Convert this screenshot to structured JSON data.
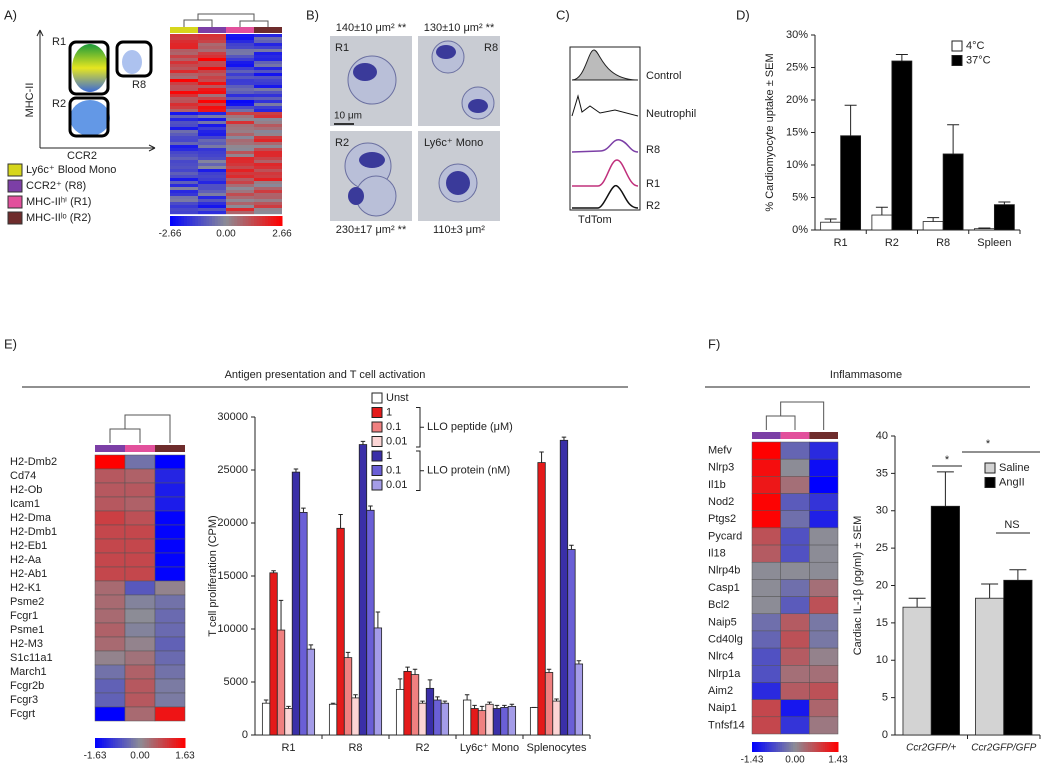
{
  "panels": {
    "A": {
      "label": "A)",
      "y_axis_label": "MHC-II",
      "x_axis_label": "CCR2",
      "gates": [
        "R1",
        "R2",
        "R8"
      ],
      "legend": [
        {
          "name": "Ly6c⁺ Blood Mono",
          "color": "#d6d61c"
        },
        {
          "name": "CCR2⁺ (R8)",
          "color": "#7c3fa6"
        },
        {
          "name": "MHC-IIʰⁱ (R1)",
          "color": "#e2509c"
        },
        {
          "name": "MHC-IIˡᵒ (R2)",
          "color": "#6e2c2c"
        }
      ],
      "zlim": [
        -2.66,
        2.66
      ],
      "colorbar_ticks": [
        -2.66,
        {
          "value": 0,
          "label": "0.00"
        },
        2.66
      ]
    },
    "B": {
      "label": "B)",
      "images": [
        {
          "name": "R1",
          "area": "140±10 μm² **"
        },
        {
          "name": "R8",
          "area": "130±10 μm² **"
        },
        {
          "name": "R2",
          "area": "230±17 μm² **"
        },
        {
          "name": "Ly6c⁺ Mono",
          "area": "110±3 μm²"
        }
      ],
      "scale_bar": "10 μm"
    },
    "C": {
      "label": "C)",
      "traces": [
        "Control",
        "Neutrophil",
        "R8",
        "R1",
        "R2"
      ],
      "x_axis_label": "TdTom"
    },
    "D": {
      "label": "D)"
    },
    "E": {
      "label": "E)",
      "title": "Antigen presentation and T cell activation"
    },
    "F": {
      "label": "F)",
      "title": "Inflammasome"
    }
  },
  "chart_data": [
    {
      "type": "bar",
      "y_label": "% Cardiomyocyte uptake ± SEM",
      "categories": [
        "R1",
        "R2",
        "R8",
        "Spleen"
      ],
      "series": [
        {
          "name": "4°C",
          "color": "#ffffff",
          "values": [
            1.2,
            2.3,
            1.3,
            0.2
          ],
          "errors": [
            0.5,
            1.2,
            0.6,
            0.1
          ]
        },
        {
          "name": "37°C",
          "color": "#000000",
          "values": [
            14.5,
            26,
            11.7,
            3.9
          ],
          "errors": [
            4.7,
            1,
            4.5,
            0.4
          ]
        }
      ],
      "ylim": [
        0,
        30
      ],
      "yticks": [
        {
          "value": 0,
          "label": "0%"
        },
        {
          "value": 5,
          "label": "5%"
        },
        {
          "value": 10,
          "label": "10%"
        },
        {
          "value": 15,
          "label": "15%"
        },
        {
          "value": 20,
          "label": "20%"
        },
        {
          "value": 25,
          "label": "25%"
        },
        {
          "value": 30,
          "label": "30%"
        }
      ],
      "legend": "top-right"
    },
    {
      "type": "heatmap",
      "column_colors": [
        "#7c3fa6",
        "#e2509c",
        "#6e2c2c"
      ],
      "rows": [
        "H2-Dmb2",
        "Cd74",
        "H2-Ob",
        "Icam1",
        "H2-Dma",
        "H2-Dmb1",
        "H2-Eb1",
        "H2-Aa",
        "H2-Ab1",
        "H2-K1",
        "Psme2",
        "Fcgr1",
        "Psme1",
        "H2-M3",
        "S1c11a1",
        "March1",
        "Fcgr2b",
        "Fcgr3",
        "Fcgrt"
      ],
      "values": [
        [
          1.63,
          -0.3,
          -1.63
        ],
        [
          0.6,
          0.5,
          -1.2
        ],
        [
          0.6,
          0.6,
          -1.3
        ],
        [
          0.6,
          0.5,
          -1.3
        ],
        [
          0.9,
          0.7,
          -1.6
        ],
        [
          0.8,
          0.8,
          -1.6
        ],
        [
          0.8,
          0.8,
          -1.6
        ],
        [
          0.8,
          0.8,
          -1.6
        ],
        [
          0.8,
          0.8,
          -1.6
        ],
        [
          0.4,
          -0.6,
          0.1
        ],
        [
          0.4,
          -0.1,
          -0.3
        ],
        [
          0.4,
          0,
          -0.4
        ],
        [
          0.5,
          -0.1,
          -0.4
        ],
        [
          0.4,
          0.1,
          -0.5
        ],
        [
          0.1,
          0.3,
          -0.4
        ],
        [
          -0.3,
          0.5,
          -0.3
        ],
        [
          -0.5,
          0.6,
          -0.2
        ],
        [
          -0.5,
          0.6,
          -0.2
        ],
        [
          -1.63,
          0.4,
          1.4
        ]
      ],
      "zlim": [
        -1.63,
        1.63
      ],
      "colorbar_ticks": [
        -1.63,
        {
          "value": 0,
          "label": "0.00"
        },
        1.63
      ]
    },
    {
      "type": "bar",
      "y_label": "T cell proliferation (CPM)",
      "categories": [
        "R1",
        "R8",
        "R2",
        "Ly6c⁺ Mono",
        "Splenocytes"
      ],
      "series": [
        {
          "name": "Unst",
          "color": "#ffffff",
          "values": [
            3000,
            2900,
            4300,
            3300,
            2600
          ],
          "errors": [
            300,
            100,
            1000,
            500,
            0
          ]
        },
        {
          "name": "1",
          "color": "#e41a1a",
          "values": [
            15300,
            19500,
            6000,
            2500,
            25700
          ],
          "errors": [
            200,
            1300,
            400,
            300,
            1000
          ]
        },
        {
          "name": "0.1",
          "color": "#f08080",
          "values": [
            9900,
            7300,
            5700,
            2300,
            5900
          ],
          "errors": [
            2800,
            500,
            500,
            400,
            300
          ]
        },
        {
          "name": "0.01",
          "color": "#fcd5d5",
          "values": [
            2500,
            3500,
            3000,
            2900,
            3200
          ],
          "errors": [
            200,
            300,
            200,
            200,
            200
          ]
        },
        {
          "name": "1",
          "color": "#3a2fa8",
          "values": [
            24800,
            27400,
            4400,
            2500,
            27800
          ],
          "errors": [
            300,
            300,
            800,
            300,
            300
          ]
        },
        {
          "name": "0.1",
          "color": "#6a5fd6",
          "values": [
            21000,
            21200,
            3300,
            2600,
            17500
          ],
          "errors": [
            400,
            400,
            300,
            200,
            400
          ]
        },
        {
          "name": "0.01",
          "color": "#a49ce8",
          "values": [
            8100,
            10100,
            3000,
            2700,
            6700
          ],
          "errors": [
            400,
            1500,
            200,
            200,
            300
          ]
        }
      ],
      "legend_group_labels": [
        "LLO peptide (μM)",
        "LLO protein (nM)"
      ],
      "ylim": [
        0,
        30000
      ],
      "yticks": [
        0,
        5000,
        10000,
        15000,
        20000,
        25000,
        30000
      ],
      "legend": "top"
    },
    {
      "type": "heatmap",
      "column_colors": [
        "#7c3fa6",
        "#e2509c",
        "#6e2c2c"
      ],
      "rows": [
        "Mefv",
        "Nlrp3",
        "Il1b",
        "Nod2",
        "Ptgs2",
        "Pycard",
        "Il18",
        "Nlrp4b",
        "Casp1",
        "Bcl2",
        "Naip5",
        "Cd40lg",
        "Nlrc4",
        "Nlrp1a",
        "Aim2",
        "Naip1",
        "Tnfsf14"
      ],
      "values": [
        [
          1.43,
          -0.4,
          -1
        ],
        [
          1.3,
          0,
          -1.3
        ],
        [
          1.2,
          0.3,
          -1.43
        ],
        [
          1.4,
          -0.5,
          -0.9
        ],
        [
          1.4,
          -0.3,
          -1.1
        ],
        [
          0.6,
          -0.6,
          0
        ],
        [
          0.5,
          -0.6,
          0
        ],
        [
          0,
          0,
          0
        ],
        [
          0,
          -0.3,
          0.3
        ],
        [
          0,
          -0.5,
          0.6
        ],
        [
          -0.3,
          0.5,
          -0.2
        ],
        [
          -0.4,
          0.6,
          -0.2
        ],
        [
          -0.6,
          0.5,
          0.1
        ],
        [
          -0.6,
          0.3,
          0.3
        ],
        [
          -1,
          0.5,
          0.6
        ],
        [
          0.7,
          -1.2,
          0.4
        ],
        [
          0.7,
          -0.9,
          0.2
        ]
      ],
      "zlim": [
        -1.43,
        1.43
      ],
      "colorbar_ticks": [
        -1.43,
        {
          "value": 0,
          "label": "0.00"
        },
        1.43
      ]
    },
    {
      "type": "bar",
      "y_label": "Cardiac IL-1β (pg/ml) ± SEM",
      "categories": [
        "Ccr2GFP/+",
        "Ccr2GFP/GFP"
      ],
      "series": [
        {
          "name": "Saline",
          "color": "#d3d3d3",
          "values": [
            17.1,
            18.3
          ],
          "errors": [
            1.2,
            1.9
          ]
        },
        {
          "name": "AngII",
          "color": "#000000",
          "values": [
            30.6,
            20.7
          ],
          "errors": [
            4.6,
            1.4
          ]
        }
      ],
      "annotations": [
        "*",
        "*",
        "NS"
      ],
      "ylim": [
        0,
        40
      ],
      "yticks": [
        0,
        5,
        10,
        15,
        20,
        25,
        30,
        35,
        40
      ],
      "legend": "top-right"
    }
  ]
}
